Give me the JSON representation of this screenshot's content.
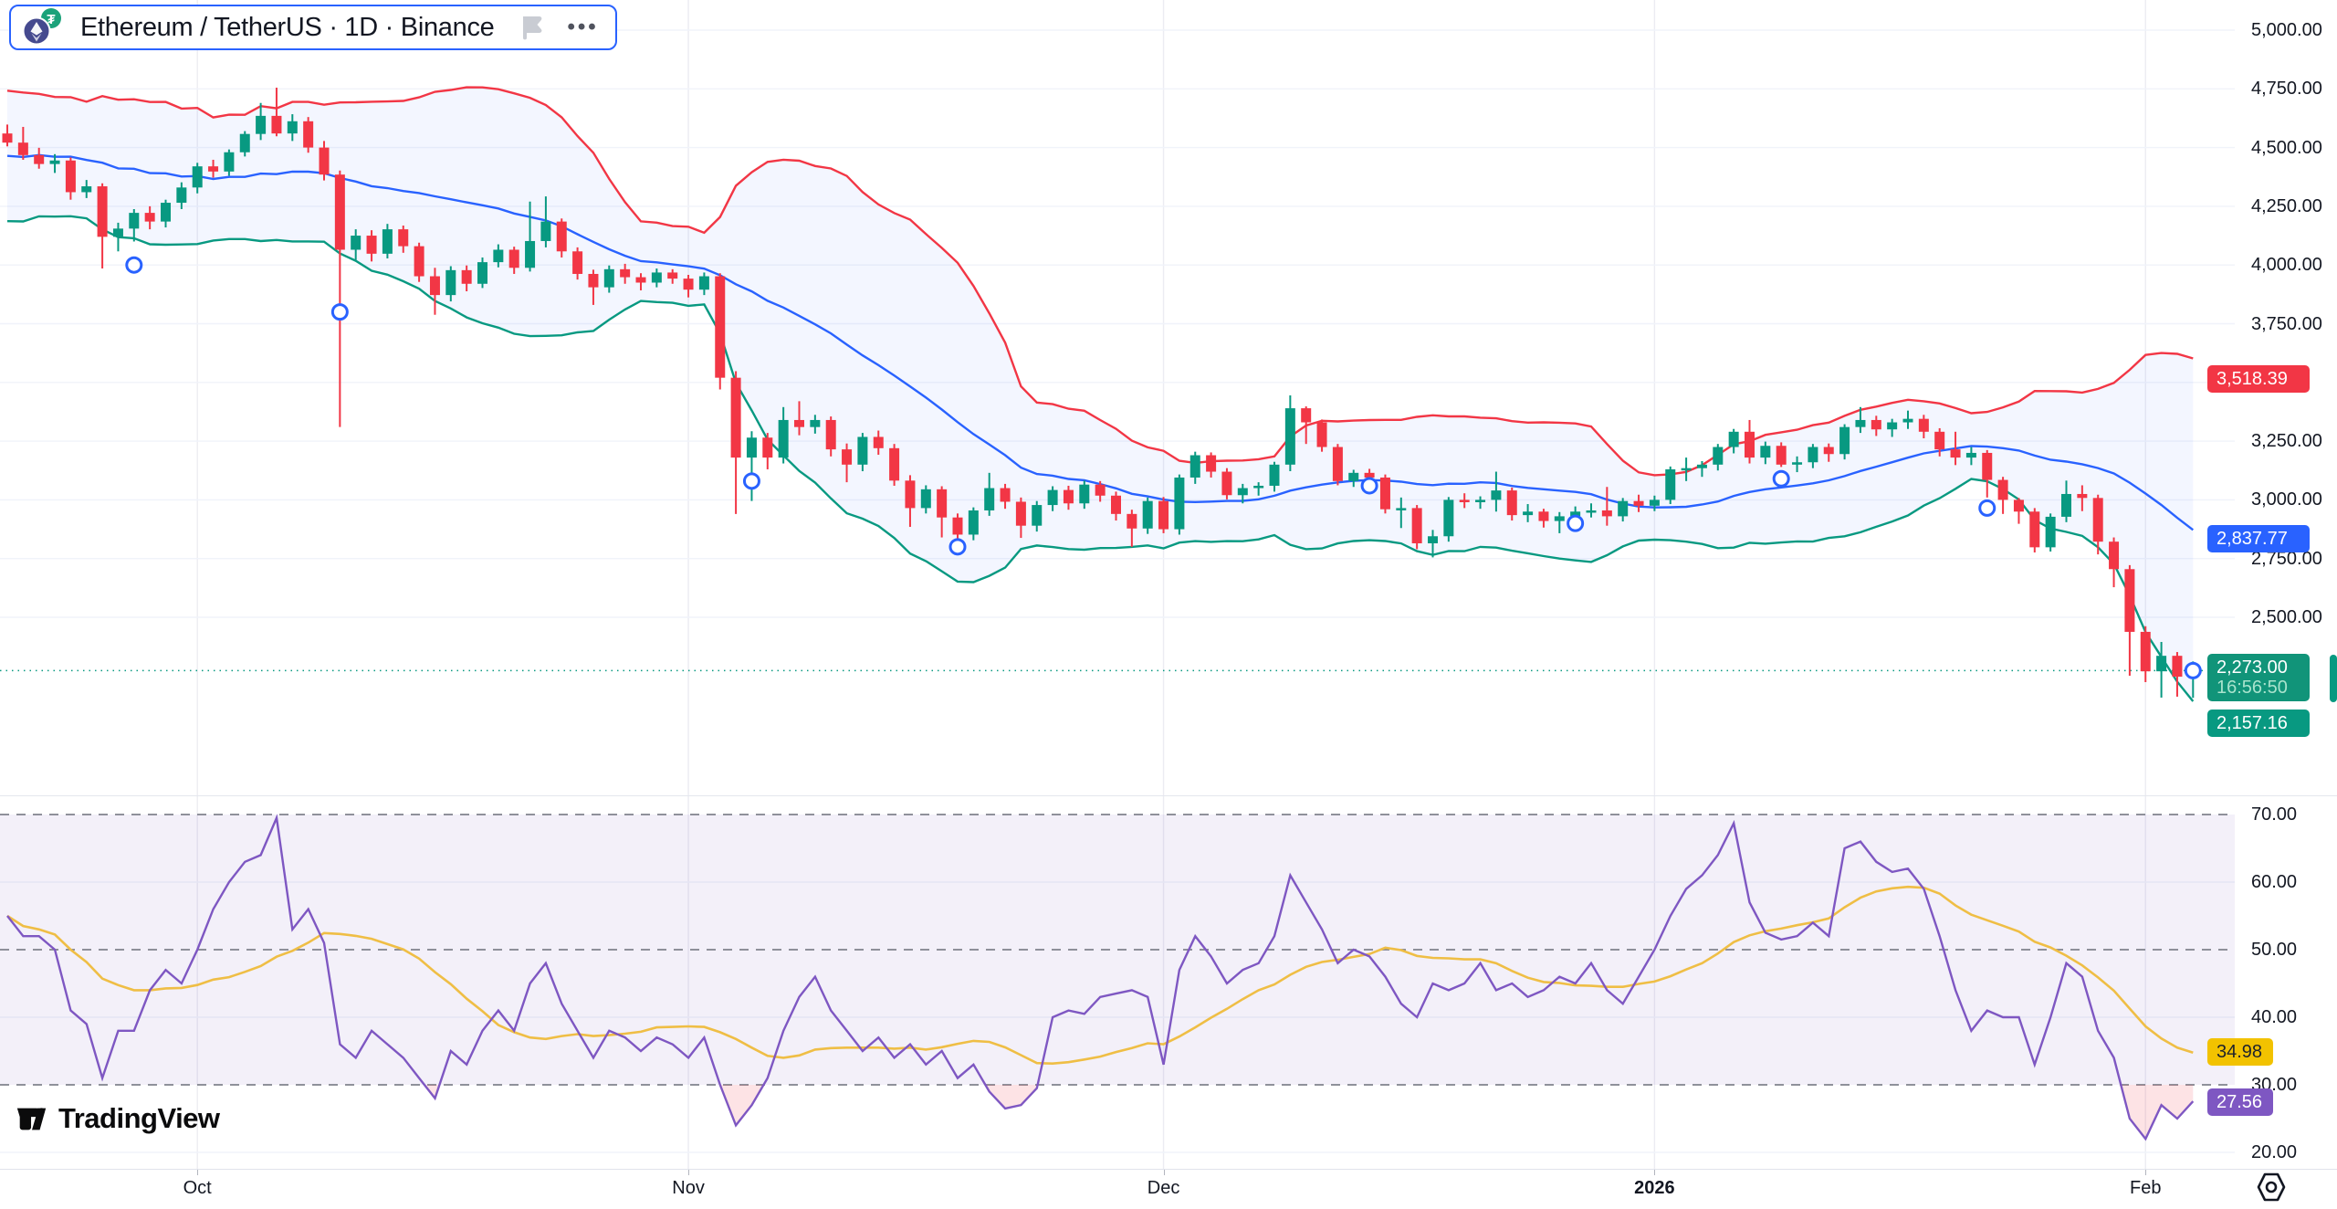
{
  "symbol_toolbar": {
    "title": "Ethereum / TetherUS · 1D · Binance",
    "more_label": "•••"
  },
  "logo": {
    "brand": "TradingView"
  },
  "price_scale": {
    "ticks": [
      5000,
      4750,
      4500,
      4250,
      4000,
      3750,
      3250,
      3000,
      2750,
      2500
    ],
    "badges": {
      "upper_band": "3,518.39",
      "basis": "2,837.77",
      "last_price": "2,273.00",
      "countdown": "16:56:50",
      "lower_band": "2,157.16"
    }
  },
  "rsi_scale": {
    "ticks": [
      70,
      60,
      50,
      40,
      30,
      20
    ],
    "badges": {
      "rsi_ma": "34.98",
      "rsi": "27.56"
    }
  },
  "time_scale": {
    "labels": [
      {
        "text": "Oct",
        "i": 12,
        "bold": false
      },
      {
        "text": "Nov",
        "i": 43,
        "bold": false
      },
      {
        "text": "Dec",
        "i": 73,
        "bold": false
      },
      {
        "text": "2026",
        "i": 104,
        "bold": true
      },
      {
        "text": "Feb",
        "i": 135,
        "bold": false
      }
    ]
  },
  "chart_data": {
    "type": "candlestick_with_rsi",
    "title": "Ethereum / TetherUS · 1D · Binance",
    "price_axis": {
      "min_labeled": 2500,
      "max_labeled": 5000,
      "step": 250
    },
    "rsi_axis": {
      "min": 20,
      "max": 70,
      "bands": [
        70,
        50,
        30
      ]
    },
    "indicators": {
      "bollinger": {
        "period": 20,
        "mult": 2
      },
      "rsi_ma_period": 14
    },
    "current_price": 2273.0,
    "colors": {
      "up": "#089981",
      "down": "#f23645",
      "bb_upper": "#f23645",
      "bb_basis": "#2962ff",
      "bb_lower": "#089981",
      "bb_fill": "rgba(41,98,255,0.055)",
      "rsi": "#7e57c2",
      "rsi_ma": "#efbe45",
      "rsi_band_fill": "rgba(126,87,194,0.09)",
      "oversold_fill": "rgba(242,54,69,0.14)",
      "grid": "#f0f3fa",
      "vgrid": "#ececf2",
      "dashed": "#80828c",
      "marker": "#2962ff",
      "axis_text": "#131722"
    },
    "bb_seed": [
      4560,
      4270,
      4590,
      4300,
      4620,
      4350,
      4640,
      4250,
      4560,
      4280,
      4600,
      4380,
      4650,
      4300,
      4560,
      4350,
      4610,
      4400,
      4500
    ],
    "candles": [
      [
        4560,
        4598,
        4505,
        4521
      ],
      [
        4521,
        4588,
        4448,
        4468
      ],
      [
        4468,
        4499,
        4410,
        4430
      ],
      [
        4430,
        4472,
        4392,
        4445
      ],
      [
        4445,
        4458,
        4278,
        4310
      ],
      [
        4310,
        4362,
        4285,
        4335
      ],
      [
        4335,
        4348,
        3985,
        4120
      ],
      [
        4120,
        4180,
        4058,
        4155
      ],
      [
        4155,
        4238,
        4100,
        4222
      ],
      [
        4222,
        4250,
        4152,
        4185
      ],
      [
        4185,
        4278,
        4160,
        4265
      ],
      [
        4265,
        4352,
        4238,
        4330
      ],
      [
        4330,
        4435,
        4305,
        4420
      ],
      [
        4420,
        4448,
        4372,
        4398
      ],
      [
        4398,
        4492,
        4380,
        4480
      ],
      [
        4480,
        4570,
        4462,
        4558
      ],
      [
        4558,
        4690,
        4532,
        4635
      ],
      [
        4635,
        4755,
        4548,
        4560
      ],
      [
        4560,
        4642,
        4528,
        4612
      ],
      [
        4612,
        4630,
        4478,
        4500
      ],
      [
        4500,
        4528,
        4360,
        4385
      ],
      [
        4385,
        4402,
        3310,
        4065
      ],
      [
        4065,
        4152,
        4022,
        4125
      ],
      [
        4125,
        4148,
        4015,
        4048
      ],
      [
        4048,
        4175,
        4028,
        4152
      ],
      [
        4152,
        4168,
        4052,
        4080
      ],
      [
        4080,
        4095,
        3928,
        3952
      ],
      [
        3952,
        3988,
        3788,
        3872
      ],
      [
        3872,
        3995,
        3845,
        3978
      ],
      [
        3978,
        3998,
        3888,
        3920
      ],
      [
        3920,
        4032,
        3902,
        4012
      ],
      [
        4012,
        4088,
        3990,
        4065
      ],
      [
        4065,
        4078,
        3962,
        3988
      ],
      [
        3988,
        4270,
        3972,
        4102
      ],
      [
        4102,
        4292,
        4075,
        4185
      ],
      [
        4185,
        4198,
        4032,
        4058
      ],
      [
        4058,
        4075,
        3938,
        3962
      ],
      [
        3962,
        3980,
        3830,
        3905
      ],
      [
        3905,
        3998,
        3882,
        3982
      ],
      [
        3982,
        4005,
        3920,
        3948
      ],
      [
        3948,
        3965,
        3892,
        3925
      ],
      [
        3925,
        3985,
        3905,
        3968
      ],
      [
        3968,
        3982,
        3920,
        3942
      ],
      [
        3942,
        3958,
        3862,
        3895
      ],
      [
        3895,
        3968,
        3872,
        3952
      ],
      [
        3952,
        3965,
        3470,
        3520
      ],
      [
        3520,
        3548,
        2940,
        3180
      ],
      [
        3180,
        3292,
        2995,
        3265
      ],
      [
        3265,
        3285,
        3130,
        3180
      ],
      [
        3180,
        3395,
        3155,
        3340
      ],
      [
        3340,
        3420,
        3275,
        3310
      ],
      [
        3310,
        3362,
        3282,
        3340
      ],
      [
        3340,
        3355,
        3185,
        3215
      ],
      [
        3215,
        3240,
        3075,
        3150
      ],
      [
        3150,
        3285,
        3122,
        3268
      ],
      [
        3268,
        3295,
        3192,
        3220
      ],
      [
        3220,
        3238,
        3060,
        3082
      ],
      [
        3082,
        3105,
        2885,
        2965
      ],
      [
        2965,
        3062,
        2942,
        3045
      ],
      [
        3045,
        3058,
        2840,
        2925
      ],
      [
        2925,
        2942,
        2772,
        2852
      ],
      [
        2852,
        2968,
        2828,
        2955
      ],
      [
        2955,
        3115,
        2932,
        3050
      ],
      [
        3050,
        3068,
        2962,
        2992
      ],
      [
        2992,
        3010,
        2838,
        2890
      ],
      [
        2890,
        2995,
        2865,
        2978
      ],
      [
        2978,
        3058,
        2952,
        3042
      ],
      [
        3042,
        3060,
        2958,
        2985
      ],
      [
        2985,
        3082,
        2962,
        3065
      ],
      [
        3065,
        3080,
        2992,
        3018
      ],
      [
        3018,
        3035,
        2912,
        2940
      ],
      [
        2940,
        2958,
        2800,
        2878
      ],
      [
        2878,
        3010,
        2855,
        2995
      ],
      [
        2995,
        3012,
        2858,
        2875
      ],
      [
        2875,
        3108,
        2852,
        3095
      ],
      [
        3095,
        3205,
        3068,
        3190
      ],
      [
        3190,
        3202,
        3095,
        3120
      ],
      [
        3120,
        3135,
        3002,
        3020
      ],
      [
        3020,
        3068,
        2985,
        3050
      ],
      [
        3050,
        3075,
        3018,
        3060
      ],
      [
        3060,
        3162,
        3035,
        3150
      ],
      [
        3150,
        3445,
        3122,
        3390
      ],
      [
        3390,
        3398,
        3238,
        3330
      ],
      [
        3330,
        3342,
        3205,
        3225
      ],
      [
        3225,
        3238,
        3062,
        3080
      ],
      [
        3080,
        3128,
        3055,
        3115
      ],
      [
        3115,
        3132,
        3068,
        3095
      ],
      [
        3095,
        3108,
        2942,
        2960
      ],
      [
        2960,
        3010,
        2880,
        2965
      ],
      [
        2965,
        2978,
        2790,
        2815
      ],
      [
        2815,
        2872,
        2755,
        2845
      ],
      [
        2845,
        3012,
        2822,
        3000
      ],
      [
        3000,
        3028,
        2965,
        2990
      ],
      [
        2990,
        3015,
        2962,
        3000
      ],
      [
        3000,
        3120,
        2950,
        3040
      ],
      [
        3040,
        3052,
        2912,
        2935
      ],
      [
        2935,
        2982,
        2905,
        2950
      ],
      [
        2950,
        2962,
        2882,
        2910
      ],
      [
        2910,
        2948,
        2858,
        2930
      ],
      [
        2930,
        2972,
        2902,
        2950
      ],
      [
        2950,
        2985,
        2925,
        2955
      ],
      [
        2955,
        3055,
        2890,
        2930
      ],
      [
        2930,
        3008,
        2908,
        2995
      ],
      [
        2995,
        3022,
        2948,
        2975
      ],
      [
        2975,
        3018,
        2952,
        3000
      ],
      [
        3000,
        3142,
        2982,
        3130
      ],
      [
        3130,
        3180,
        3080,
        3135
      ],
      [
        3135,
        3165,
        3098,
        3150
      ],
      [
        3150,
        3238,
        3125,
        3225
      ],
      [
        3225,
        3302,
        3198,
        3290
      ],
      [
        3290,
        3340,
        3155,
        3180
      ],
      [
        3180,
        3248,
        3152,
        3230
      ],
      [
        3230,
        3245,
        3140,
        3150
      ],
      [
        3150,
        3185,
        3118,
        3160
      ],
      [
        3160,
        3238,
        3135,
        3225
      ],
      [
        3225,
        3240,
        3162,
        3195
      ],
      [
        3195,
        3322,
        3172,
        3310
      ],
      [
        3310,
        3395,
        3285,
        3340
      ],
      [
        3340,
        3358,
        3272,
        3300
      ],
      [
        3300,
        3345,
        3268,
        3330
      ],
      [
        3330,
        3380,
        3302,
        3345
      ],
      [
        3345,
        3362,
        3262,
        3290
      ],
      [
        3290,
        3305,
        3185,
        3215
      ],
      [
        3215,
        3290,
        3148,
        3180
      ],
      [
        3180,
        3225,
        3148,
        3200
      ],
      [
        3200,
        3212,
        3010,
        3085
      ],
      [
        3085,
        3098,
        2940,
        3000
      ],
      [
        3000,
        3008,
        2898,
        2950
      ],
      [
        2950,
        2965,
        2776,
        2798
      ],
      [
        2798,
        2942,
        2780,
        2928
      ],
      [
        2928,
        3082,
        2905,
        3025
      ],
      [
        3025,
        3062,
        2952,
        3008
      ],
      [
        3008,
        3022,
        2768,
        2822
      ],
      [
        2822,
        2840,
        2628,
        2705
      ],
      [
        2705,
        2722,
        2251,
        2438
      ],
      [
        2438,
        2462,
        2224,
        2270
      ],
      [
        2270,
        2395,
        2158,
        2336
      ],
      [
        2336,
        2352,
        2162,
        2247
      ],
      [
        2247,
        2312,
        2157,
        2273
      ]
    ],
    "markers": [
      [
        8,
        4000
      ],
      [
        21,
        3800
      ],
      [
        47,
        3080
      ],
      [
        60,
        2800
      ],
      [
        86,
        3060
      ],
      [
        99,
        2900
      ],
      [
        112,
        3090
      ],
      [
        125,
        2965
      ],
      [
        138,
        2273
      ]
    ],
    "rsi": [
      55,
      52,
      52,
      50,
      41,
      39,
      31,
      38,
      38,
      44,
      47,
      45,
      50,
      56,
      60,
      63,
      64,
      69.5,
      53,
      56,
      51,
      36,
      34,
      38,
      36,
      34,
      31,
      28,
      35,
      33,
      38,
      41,
      38,
      45,
      48,
      42,
      38,
      34,
      38,
      37,
      35,
      37,
      36,
      34,
      37,
      30,
      24,
      27,
      31,
      38,
      43,
      46,
      41,
      38,
      35,
      37,
      34,
      36,
      33,
      35,
      31,
      33,
      29,
      26.5,
      27,
      29.5,
      40,
      41,
      40.5,
      43,
      43.5,
      44,
      43,
      33,
      47,
      52,
      49,
      45,
      47,
      48,
      52,
      61,
      57,
      53,
      48,
      50,
      49,
      46,
      42,
      40,
      45,
      44,
      45,
      48,
      44,
      45,
      43,
      44,
      46,
      45,
      48,
      44,
      42,
      46,
      50,
      55,
      59,
      61,
      64,
      68.7,
      57,
      52.5,
      51.5,
      52,
      54,
      52,
      65,
      66,
      63,
      61.5,
      62,
      59,
      52,
      44,
      38,
      41,
      40,
      40,
      33,
      40,
      48,
      46,
      38,
      34,
      25,
      22,
      27,
      25,
      27.56
    ]
  }
}
